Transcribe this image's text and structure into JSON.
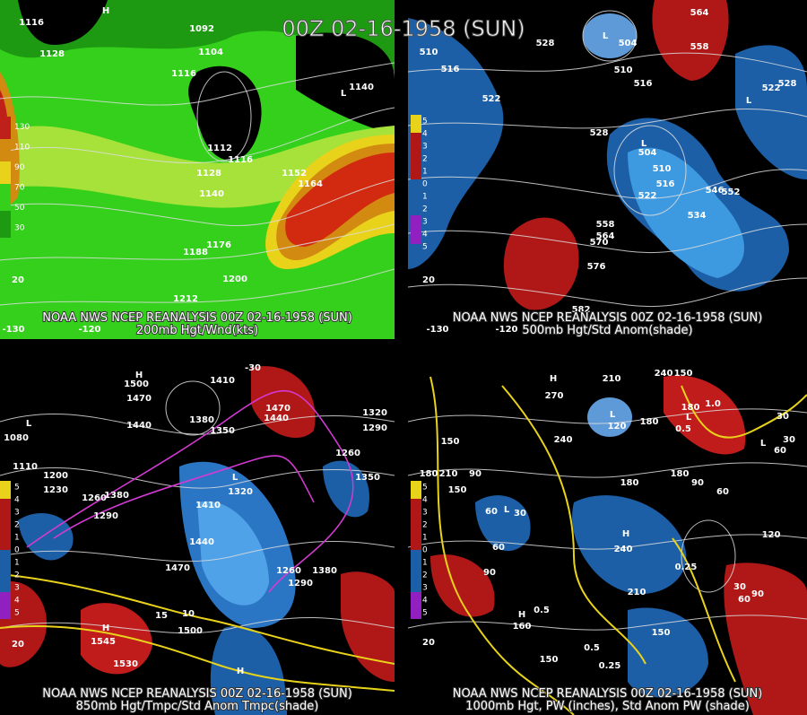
{
  "title": "00Z 02-16-1958 (SUN)",
  "panels": [
    {
      "source": "NOAA NWS NCEP REANALYSIS 00Z 02-16-1958 (SUN)",
      "caption": "200mb Hgt/Wnd(kts)",
      "legend": [
        "130",
        "110",
        "90",
        "70",
        "50",
        "30"
      ],
      "labels": [
        "1116",
        "1128",
        "H",
        "1092",
        "1104",
        "1116",
        "1140",
        "L",
        "1112",
        "1116",
        "1128",
        "1140",
        "1152",
        "1164",
        "1176",
        "1188",
        "1200",
        "1212",
        "20",
        "-130",
        "-120"
      ]
    },
    {
      "source": "NOAA NWS NCEP REANALYSIS 00Z 02-16-1958 (SUN)",
      "caption": "500mb Hgt/Std Anom(shade)",
      "legend": [
        "5",
        "4",
        "3",
        "2",
        "1",
        "0",
        "1",
        "2",
        "3",
        "4",
        "5"
      ],
      "labels": [
        "510",
        "516",
        "522",
        "528",
        "L",
        "504",
        "510",
        "516",
        "564",
        "558",
        "522",
        "528",
        "L",
        "528",
        "L",
        "504",
        "510",
        "516",
        "522",
        "534",
        "546",
        "552",
        "558",
        "564",
        "570",
        "576",
        "582",
        "20",
        "-130",
        "-120"
      ]
    },
    {
      "source": "NOAA NWS NCEP REANALYSIS 00Z 02-16-1958 (SUN)",
      "caption": "850mb Hgt/Tmpc/Std Anom Tmpc(shade)",
      "legend": [
        "5",
        "4",
        "3",
        "2",
        "1",
        "0",
        "1",
        "2",
        "3",
        "4",
        "5"
      ],
      "labels": [
        "H",
        "1500",
        "1470",
        "1440",
        "1410",
        "1380",
        "1350",
        "1470",
        "1440",
        "-30",
        "1320",
        "1290",
        "1260",
        "1350",
        "L",
        "1080",
        "1110",
        "1200",
        "1230",
        "1260",
        "1380",
        "1290",
        "L",
        "1320",
        "1410",
        "1440",
        "1470",
        "1260",
        "1290",
        "1380",
        "15",
        "10",
        "1500",
        "H",
        "1545",
        "1530",
        "20",
        "H"
      ]
    },
    {
      "source": "NOAA NWS NCEP REANALYSIS 00Z 02-16-1958 (SUN)",
      "caption": "1000mb Hgt, PW (inches), Std Anom PW (shade)",
      "legend": [
        "5",
        "4",
        "3",
        "2",
        "1",
        "0",
        "1",
        "2",
        "3",
        "4",
        "5"
      ],
      "labels": [
        "H",
        "210",
        "240",
        "150",
        "270",
        "L",
        "120",
        "180",
        "240",
        "180",
        "L",
        "0.5",
        "1.0",
        "L",
        "30",
        "60",
        "30",
        "150",
        "180",
        "210",
        "90",
        "150",
        "60",
        "L",
        "30",
        "60",
        "90",
        "180",
        "180",
        "90",
        "60",
        "120",
        "H",
        "240",
        "0.25",
        "30",
        "60",
        "90",
        "210",
        "150",
        "H",
        "160",
        "0.5",
        "150",
        "0.25",
        "0.5",
        "20"
      ]
    }
  ]
}
